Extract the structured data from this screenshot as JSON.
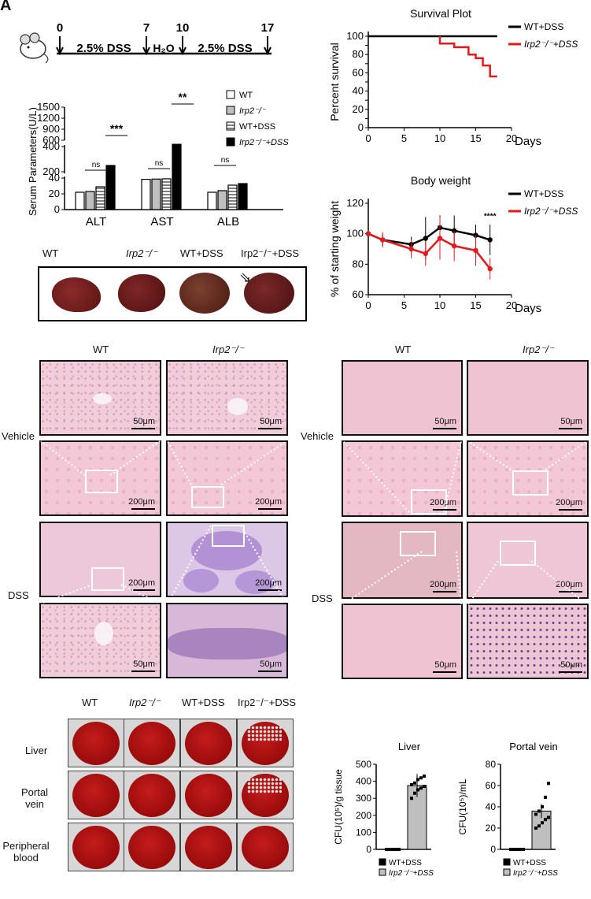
{
  "panel_letter": "A",
  "timeline": {
    "ticks": [
      "0",
      "7",
      "10",
      "17"
    ],
    "segments": [
      "2.5% DSS",
      "H₂O",
      "2.5% DSS"
    ],
    "icon": "mouse-icon"
  },
  "colors": {
    "wt": "#000000",
    "irp2": "#e31a1c",
    "bar_gray": "#bfbfbf"
  },
  "chart_data": [
    {
      "type": "bar",
      "ylabel": "Serum Parameters(U/L)",
      "categories": [
        "ALT",
        "AST",
        "ALB"
      ],
      "series": [
        {
          "name": "WT",
          "values": [
            22,
            140,
            22
          ]
        },
        {
          "name": "Irp2⁻/⁻",
          "values": [
            23,
            142,
            24
          ]
        },
        {
          "name": "WT+DSS",
          "values": [
            29,
            144,
            31
          ]
        },
        {
          "name": "Irp2⁻/⁻+DSS",
          "values": [
            250,
            490,
            33
          ]
        }
      ],
      "yticks": [
        "0",
        "20",
        "40",
        "200",
        "400",
        "600",
        "900",
        "1200",
        "1500"
      ],
      "significance": [
        {
          "group": "ALT",
          "label": "ns"
        },
        {
          "group": "ALT",
          "label": "***"
        },
        {
          "group": "AST",
          "label": "ns"
        },
        {
          "group": "AST",
          "label": "**"
        },
        {
          "group": "ALB",
          "label": "ns"
        }
      ]
    },
    {
      "type": "line",
      "title": "Survival Plot",
      "ylabel": "Percent survival",
      "xlabel": "Days",
      "xlim": [
        0,
        20
      ],
      "ylim": [
        0,
        100
      ],
      "xticks": [
        "0",
        "5",
        "10",
        "15",
        "20"
      ],
      "yticks": [
        "0",
        "10",
        "20",
        "30",
        "40",
        "50",
        "60",
        "70",
        "80",
        "90",
        "100"
      ],
      "series": [
        {
          "name": "WT+DSS",
          "x": [
            0,
            18
          ],
          "y": [
            100,
            100
          ]
        },
        {
          "name": "Irp2⁻/⁻+DSS",
          "x": [
            10,
            10,
            12,
            12,
            14,
            14,
            15,
            15,
            16,
            16,
            17,
            17,
            18
          ],
          "y": [
            100,
            92,
            92,
            88,
            88,
            80,
            80,
            76,
            76,
            68,
            68,
            56,
            56
          ]
        }
      ]
    },
    {
      "type": "line",
      "title": "Body weight",
      "ylabel": "% of starting weight",
      "xlabel": "Days",
      "xlim": [
        0,
        20
      ],
      "ylim": [
        60,
        120
      ],
      "xticks": [
        "0",
        "5",
        "10",
        "15",
        "20"
      ],
      "yticks": [
        "60",
        "80",
        "100",
        "120"
      ],
      "annotation": "****",
      "series": [
        {
          "name": "WT+DSS",
          "x": [
            0,
            2,
            6,
            8,
            10,
            12,
            15,
            17
          ],
          "y": [
            100,
            96,
            93,
            97,
            104,
            102,
            99,
            96
          ],
          "err": [
            2,
            4,
            5,
            14,
            8,
            10,
            7,
            10
          ]
        },
        {
          "name": "Irp2⁻/⁻+DSS",
          "x": [
            0,
            2,
            6,
            8,
            10,
            12,
            15,
            17
          ],
          "y": [
            100,
            96,
            90,
            87,
            97,
            92,
            89,
            77
          ],
          "err": [
            2,
            5,
            6,
            8,
            14,
            10,
            10,
            7
          ]
        }
      ]
    },
    {
      "type": "bar",
      "title": "Liver",
      "ylabel": "CFU(10⁵)/g tissue",
      "categories": [
        "WT+DSS",
        "Irp2⁻/⁻+DSS"
      ],
      "values": [
        0,
        375
      ],
      "ylim": [
        0,
        500
      ],
      "yticks": [
        "0",
        "100",
        "200",
        "300",
        "400",
        "500"
      ],
      "points": [
        [
          0,
          0,
          0,
          0,
          0,
          0,
          0,
          0,
          0,
          0
        ],
        [
          300,
          330,
          350,
          360,
          370,
          380,
          390,
          410,
          420,
          430
        ]
      ]
    },
    {
      "type": "bar",
      "title": "Portal vein",
      "ylabel": "CFU(10⁵)/mL",
      "categories": [
        "WT+DSS",
        "Irp2⁻/⁻+DSS"
      ],
      "values": [
        0,
        36
      ],
      "ylim": [
        0,
        80
      ],
      "yticks": [
        "0",
        "20",
        "40",
        "60",
        "80"
      ],
      "points": [
        [
          0,
          0,
          0,
          0,
          0,
          0,
          0,
          0,
          0,
          0
        ],
        [
          20,
          22,
          25,
          28,
          30,
          33,
          36,
          40,
          49,
          62
        ]
      ]
    }
  ],
  "liver_photos": {
    "labels": [
      "WT",
      "Irp2⁻/⁻",
      "WT+DSS",
      "Irp2⁻/⁻+DSS"
    ]
  },
  "histology_left": {
    "cols": [
      "WT",
      "Irp2⁻/⁻"
    ],
    "rows": [
      "Vehicle",
      "DSS"
    ],
    "scale": {
      "s50": "50μm",
      "s200": "200μm"
    }
  },
  "histology_right": {
    "cols": [
      "WT",
      "Irp2⁻/⁻"
    ],
    "rows": [
      "Vehicle",
      "DSS"
    ],
    "scale": {
      "s50": "50μm",
      "s200": "200μm"
    }
  },
  "plates": {
    "cols": [
      "WT",
      "Irp2⁻/⁻",
      "WT+DSS",
      "Irp2⁻/⁻+DSS"
    ],
    "rows": [
      "Liver",
      "Portal\nvein",
      "Peripheral\nblood"
    ]
  }
}
